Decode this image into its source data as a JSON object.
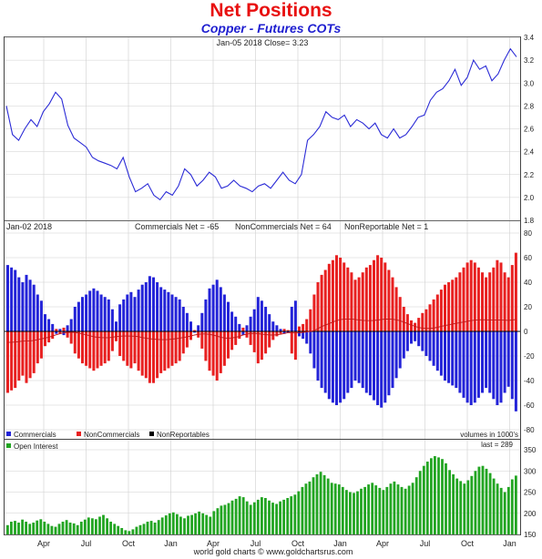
{
  "title": "Net Positions",
  "subtitle": "Copper - Futures COTs",
  "footer": "world gold charts © www.goldchartsrus.com",
  "colors": {
    "price": "#2b2bd6",
    "commercials": "#2323d8",
    "noncommercials": "#e82020",
    "nonreportables": "#000000",
    "open_interest": "#22a522",
    "avg_line": "#c01818",
    "grid": "#cfcfcf"
  },
  "chart_data": [
    {
      "type": "line",
      "panel": "price",
      "header": "Jan-05  2018   Close= 3.23",
      "ylim": [
        1.8,
        3.4
      ],
      "yticks": [
        1.8,
        2.0,
        2.2,
        2.4,
        2.6,
        2.8,
        3.0,
        3.2,
        3.4
      ],
      "series": [
        {
          "values": [
            2.8,
            2.55,
            2.5,
            2.6,
            2.68,
            2.62,
            2.75,
            2.82,
            2.92,
            2.86,
            2.63,
            2.52,
            2.48,
            2.44,
            2.35,
            2.32,
            2.3,
            2.28,
            2.25,
            2.35,
            2.18,
            2.05,
            2.08,
            2.12,
            2.02,
            1.98,
            2.05,
            2.02,
            2.1,
            2.25,
            2.2,
            2.1,
            2.15,
            2.22,
            2.18,
            2.08,
            2.1,
            2.15,
            2.1,
            2.08,
            2.05,
            2.1,
            2.12,
            2.08,
            2.15,
            2.22,
            2.15,
            2.12,
            2.2,
            2.5,
            2.55,
            2.62,
            2.75,
            2.7,
            2.68,
            2.72,
            2.62,
            2.68,
            2.65,
            2.6,
            2.65,
            2.55,
            2.52,
            2.6,
            2.52,
            2.55,
            2.62,
            2.7,
            2.72,
            2.85,
            2.92,
            2.95,
            3.02,
            3.12,
            2.98,
            3.05,
            3.2,
            3.12,
            3.15,
            3.02,
            3.08,
            3.2,
            3.3,
            3.23
          ]
        }
      ]
    },
    {
      "type": "bar",
      "panel": "net_positions",
      "header_left": "Jan-02  2018",
      "header_items": [
        "Commercials Net = -65",
        "NonCommercials Net = 64",
        "NonReportable Net = 1"
      ],
      "ylim": [
        -80,
        80
      ],
      "yticks": [
        -80,
        -60,
        -40,
        -20,
        0,
        20,
        40,
        60,
        80
      ],
      "unit_note": "volumes in 1000's",
      "series": [
        {
          "name": "Commercials",
          "values": [
            54,
            52,
            50,
            44,
            40,
            46,
            42,
            38,
            30,
            25,
            14,
            10,
            6,
            -2,
            2,
            -3,
            5,
            10,
            20,
            24,
            28,
            30,
            33,
            35,
            33,
            30,
            28,
            26,
            18,
            8,
            22,
            26,
            30,
            32,
            28,
            34,
            38,
            40,
            45,
            44,
            40,
            36,
            34,
            32,
            30,
            28,
            26,
            20,
            15,
            8,
            -1,
            5,
            15,
            26,
            35,
            38,
            42,
            36,
            30,
            24,
            16,
            12,
            6,
            -3,
            5,
            12,
            18,
            28,
            25,
            20,
            14,
            8,
            5,
            2,
            -2,
            -1,
            20,
            25,
            -4,
            -6,
            -10,
            -18,
            -30,
            -40,
            -46,
            -50,
            -55,
            -58,
            -60,
            -58,
            -55,
            -50,
            -46,
            -40,
            -42,
            -46,
            -50,
            -52,
            -56,
            -60,
            -62,
            -58,
            -52,
            -46,
            -38,
            -30,
            -22,
            -16,
            -10,
            -8,
            -12,
            -16,
            -20,
            -24,
            -28,
            -32,
            -36,
            -40,
            -42,
            -44,
            -46,
            -50,
            -54,
            -58,
            -60,
            -58,
            -54,
            -50,
            -46,
            -50,
            -55,
            -60,
            -58,
            -50,
            -45,
            -55,
            -65
          ]
        },
        {
          "name": "NonCommercials",
          "values": [
            -50,
            -48,
            -46,
            -40,
            -36,
            -42,
            -38,
            -34,
            -26,
            -22,
            -12,
            -9,
            -6,
            2,
            -2,
            3,
            -5,
            -10,
            -18,
            -22,
            -26,
            -28,
            -30,
            -32,
            -30,
            -28,
            -26,
            -24,
            -16,
            -8,
            -20,
            -24,
            -28,
            -30,
            -26,
            -32,
            -36,
            -38,
            -42,
            -42,
            -38,
            -34,
            -32,
            -30,
            -28,
            -26,
            -24,
            -18,
            -13,
            -7,
            1,
            -5,
            -14,
            -24,
            -32,
            -36,
            -40,
            -34,
            -28,
            -22,
            -15,
            -11,
            -6,
            3,
            -5,
            -11,
            -17,
            -26,
            -23,
            -18,
            -13,
            -7,
            -4,
            -2,
            2,
            1,
            -18,
            -23,
            4,
            6,
            10,
            18,
            30,
            40,
            46,
            50,
            55,
            58,
            62,
            60,
            56,
            52,
            48,
            42,
            44,
            48,
            52,
            54,
            58,
            62,
            60,
            56,
            50,
            44,
            36,
            28,
            20,
            14,
            9,
            7,
            11,
            15,
            18,
            22,
            26,
            30,
            34,
            38,
            40,
            42,
            44,
            48,
            52,
            56,
            58,
            56,
            52,
            48,
            44,
            48,
            52,
            58,
            56,
            48,
            44,
            54,
            64
          ]
        },
        {
          "name": "NonReportables",
          "values": []
        }
      ]
    },
    {
      "type": "bar",
      "panel": "open_interest",
      "header_right": "last = 289",
      "ylim": [
        150,
        350
      ],
      "yticks": [
        150,
        200,
        250,
        300,
        350
      ],
      "series": [
        {
          "name": "Open Interest",
          "values": [
            172,
            180,
            182,
            178,
            185,
            180,
            175,
            178,
            183,
            186,
            180,
            175,
            170,
            168,
            175,
            180,
            184,
            178,
            176,
            172,
            180,
            185,
            190,
            188,
            186,
            192,
            196,
            188,
            180,
            175,
            170,
            165,
            160,
            158,
            162,
            168,
            172,
            175,
            180,
            182,
            178,
            184,
            190,
            195,
            200,
            202,
            198,
            192,
            188,
            194,
            196,
            200,
            204,
            200,
            196,
            192,
            205,
            212,
            218,
            220,
            224,
            230,
            234,
            240,
            238,
            228,
            220,
            226,
            232,
            238,
            236,
            230,
            225,
            222,
            228,
            232,
            236,
            240,
            244,
            252,
            262,
            270,
            275,
            285,
            292,
            298,
            290,
            282,
            272,
            270,
            268,
            262,
            255,
            250,
            248,
            252,
            258,
            262,
            268,
            272,
            266,
            260,
            255,
            262,
            270,
            275,
            268,
            262,
            258,
            265,
            272,
            285,
            300,
            312,
            322,
            330,
            335,
            332,
            328,
            318,
            302,
            292,
            282,
            276,
            270,
            278,
            288,
            300,
            310,
            312,
            305,
            295,
            282,
            270,
            260,
            250,
            262,
            280,
            289
          ]
        }
      ]
    }
  ],
  "x_axis": {
    "tick_labels": [
      "Apr",
      "Jul",
      "Oct",
      "Jan",
      "Apr",
      "Jul",
      "Oct",
      "Jan",
      "Apr",
      "Jul",
      "Oct",
      "Jan"
    ]
  }
}
